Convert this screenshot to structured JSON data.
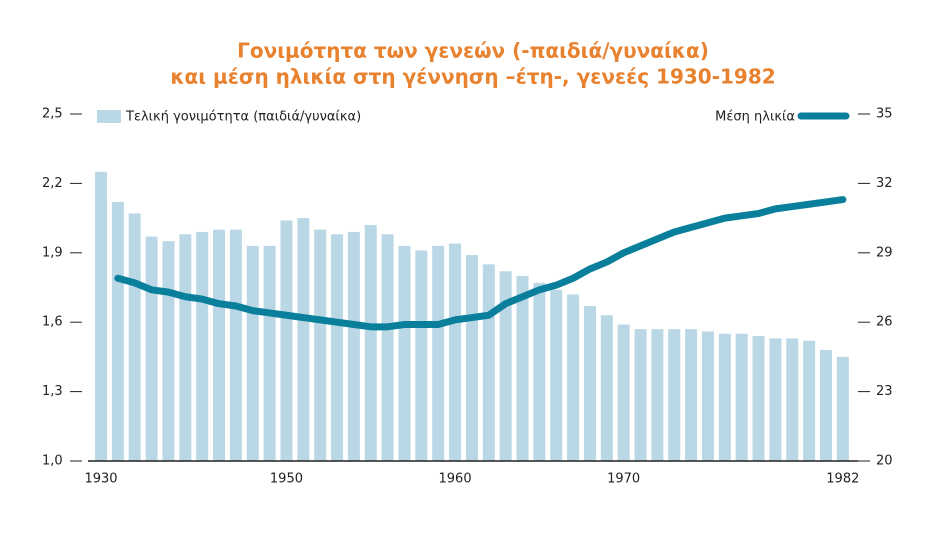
{
  "chart_data": {
    "type": "bar-line",
    "title": [
      "Γονιμότητα των γενεών (-παιδιά/γυναίκα)",
      "και μέση ηλικία στη γέννηση –έτη-, γενεές 1930-1982"
    ],
    "categories": [
      "1930",
      null,
      null,
      null,
      null,
      null,
      null,
      null,
      null,
      null,
      null,
      "1950",
      null,
      null,
      null,
      null,
      null,
      null,
      null,
      null,
      null,
      "1960",
      null,
      null,
      null,
      null,
      null,
      null,
      null,
      null,
      null,
      "1970",
      null,
      null,
      null,
      null,
      null,
      null,
      null,
      null,
      null,
      null,
      null,
      null,
      "1982"
    ],
    "series": [
      {
        "name": "Τελική γονιμότητα (παιδιά/γυναίκα)",
        "color": "#b9d7e4",
        "kind": "bar",
        "values": [
          2.25,
          2.12,
          2.07,
          1.97,
          1.95,
          1.98,
          1.99,
          2.0,
          2.0,
          1.93,
          1.93,
          2.04,
          2.05,
          2.0,
          1.98,
          1.99,
          2.02,
          1.98,
          1.93,
          1.91,
          1.93,
          1.94,
          1.89,
          1.85,
          1.82,
          1.8,
          1.77,
          1.74,
          1.72,
          1.67,
          1.63,
          1.59,
          1.57,
          1.57,
          1.57,
          1.57,
          1.56,
          1.55,
          1.55,
          1.54,
          1.53,
          1.53,
          1.52,
          1.48,
          1.45
        ]
      },
      {
        "name": "Μέση ηλικία",
        "color": "#0a7f9c",
        "kind": "line",
        "axis": "y2",
        "values": [
          null,
          27.9,
          27.7,
          27.4,
          27.3,
          27.1,
          27.0,
          26.8,
          26.7,
          26.5,
          26.4,
          26.3,
          26.2,
          26.1,
          26.0,
          25.9,
          25.8,
          25.8,
          25.9,
          25.9,
          25.9,
          26.1,
          26.2,
          26.3,
          26.8,
          27.1,
          27.4,
          27.6,
          27.9,
          28.3,
          28.6,
          29.0,
          29.3,
          29.6,
          29.9,
          30.1,
          30.3,
          30.5,
          30.6,
          30.7,
          30.9,
          31.0,
          31.1,
          31.2,
          31.3
        ]
      }
    ],
    "ylim": [
      1.0,
      2.5
    ],
    "yticks": [
      {
        "value": 1.0,
        "label": "1,0"
      },
      {
        "value": 1.3,
        "label": "1,3"
      },
      {
        "value": 1.6,
        "label": "1,6"
      },
      {
        "value": 1.9,
        "label": "1,9"
      },
      {
        "value": 2.2,
        "label": "2,2"
      },
      {
        "value": 2.5,
        "label": "2,5"
      }
    ],
    "y2lim": [
      20,
      35
    ],
    "y2ticks": [
      20,
      23,
      26,
      29,
      32,
      35
    ]
  }
}
